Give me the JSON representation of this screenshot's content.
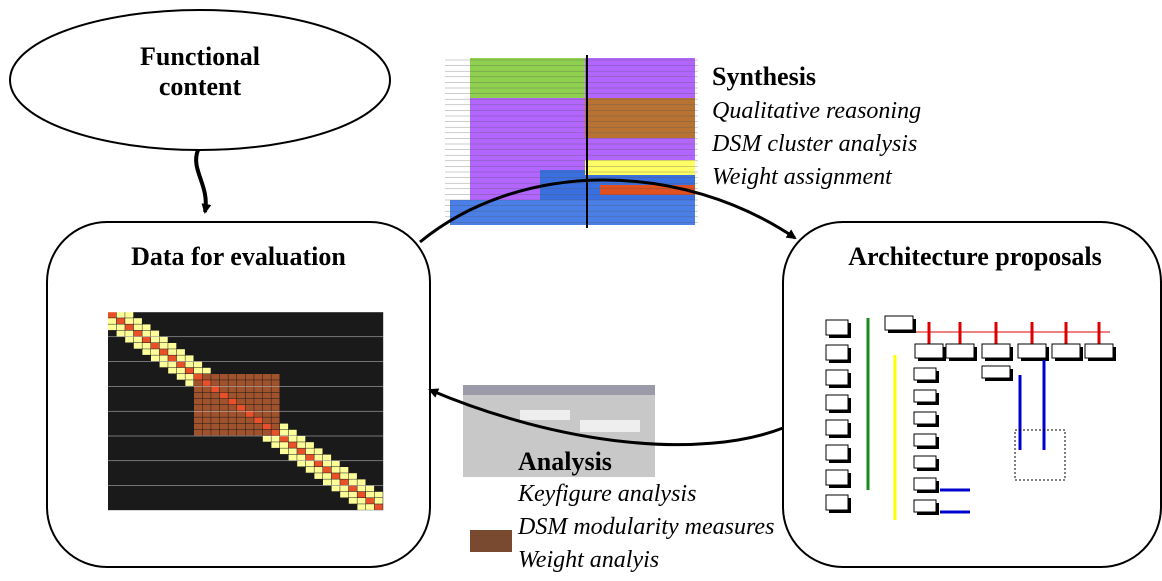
{
  "nodes": [
    {
      "label": "Functional content"
    },
    {
      "label": "Data for evaluation"
    },
    {
      "label": "Architecture proposals"
    }
  ],
  "steps": [
    {
      "title": "Synthesis",
      "items": [
        "Qualitative reasoning",
        "DSM cluster analysis",
        "Weight assignment"
      ]
    },
    {
      "title": "Analysis",
      "items": [
        "Keyfigure analysis",
        "DSM modularity measures",
        "Weight analyis"
      ]
    }
  ]
}
